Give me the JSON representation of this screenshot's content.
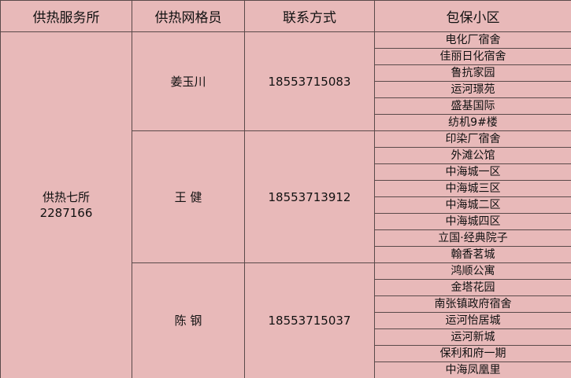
{
  "table": {
    "header": [
      "供热服务所",
      "供热网格员",
      "联系方式",
      "包保小区"
    ],
    "station": {
      "name": "供热七所",
      "phone": "2287166"
    },
    "groups": [
      {
        "member": "姜玉川",
        "phone": "18553715083",
        "communities": [
          "电化厂宿舍",
          "佳丽日化宿舍",
          "鲁抗家园",
          "运河璟苑",
          "盛基国际",
          "纺机9#楼"
        ]
      },
      {
        "member": "王 健",
        "phone": "18553713912",
        "communities": [
          "印染厂宿舍",
          "外滩公馆",
          "中海城一区",
          "中海城三区",
          "中海城二区",
          "中海城四区",
          "立国·经典院子",
          "翰香茗城"
        ]
      },
      {
        "member": "陈 钢",
        "phone": "18553715037",
        "communities": [
          "鸿顺公寓",
          "金塔花园",
          "南张镇政府宿舍",
          "运河怡居城",
          "运河新城",
          "保利和府一期",
          "中海凤凰里"
        ]
      }
    ]
  }
}
